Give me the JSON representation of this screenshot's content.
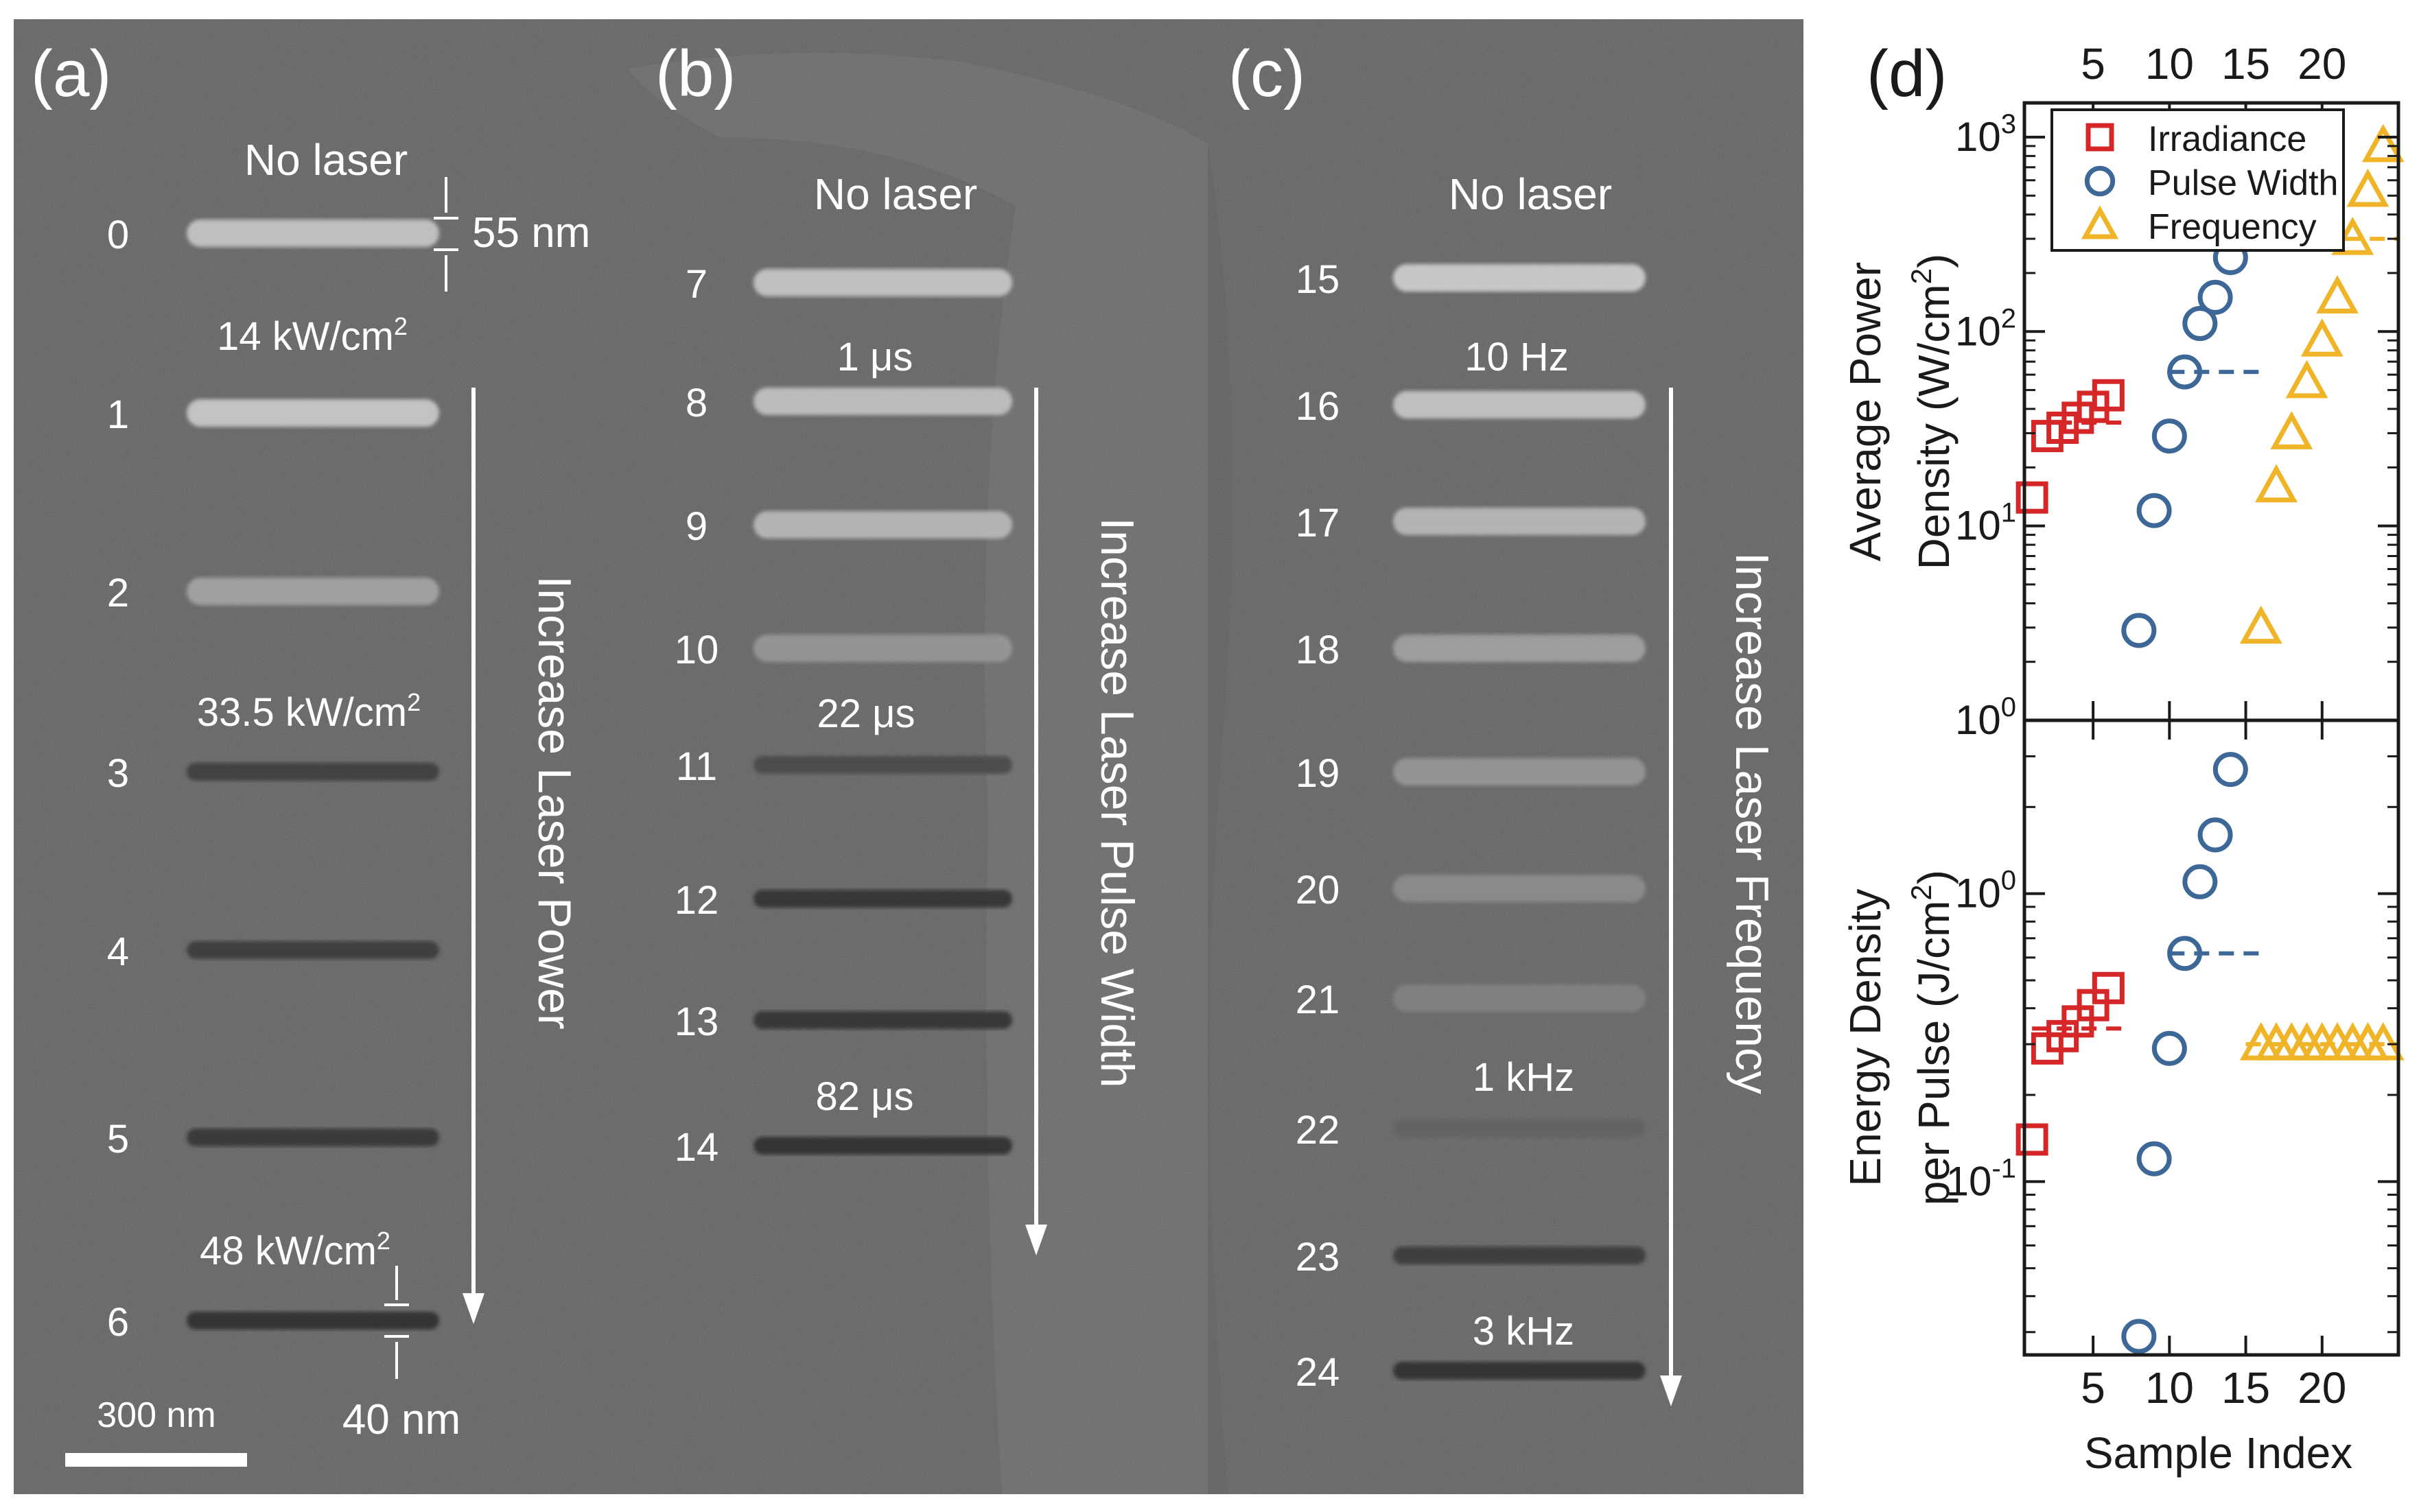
{
  "colors": {
    "sem_background": "#5c5c5c",
    "sem_text": "#ffffff",
    "irradiance": "#d62728",
    "pulse_width": "#3d6796",
    "frequency": "#f0b429",
    "axis": "#1a1a1a"
  },
  "sem_panels": [
    {
      "label": "(a)",
      "top_note": "No laser",
      "arrow_label": "Increase Laser Power",
      "scale_bar": "300 nm",
      "dimension_top": "55 nm",
      "dimension_bottom": "40 nm",
      "lines": [
        {
          "index": "0",
          "intensity": 0.78
        },
        {
          "index": "1",
          "intensity": 0.8
        },
        {
          "index": "2",
          "intensity": 0.62
        },
        {
          "index": "3",
          "intensity": 0.12
        },
        {
          "index": "4",
          "intensity": 0.1
        },
        {
          "index": "5",
          "intensity": 0.08
        },
        {
          "index": "6",
          "intensity": 0.05
        }
      ],
      "annotations": [
        {
          "text": "14 kW/cm",
          "sup": "2"
        },
        {
          "text": "33.5 kW/cm",
          "sup": "2"
        },
        {
          "text": "48 kW/cm",
          "sup": "2"
        }
      ]
    },
    {
      "label": "(b)",
      "top_note": "No laser",
      "arrow_label": "Increase Laser Pulse Width",
      "lines": [
        {
          "index": "7",
          "intensity": 0.78
        },
        {
          "index": "8",
          "intensity": 0.76
        },
        {
          "index": "9",
          "intensity": 0.72
        },
        {
          "index": "10",
          "intensity": 0.55
        },
        {
          "index": "11",
          "intensity": 0.18
        },
        {
          "index": "12",
          "intensity": 0.06
        },
        {
          "index": "13",
          "intensity": 0.06
        },
        {
          "index": "14",
          "intensity": 0.05
        }
      ],
      "annotations": [
        {
          "text": "1 μs",
          "sup": ""
        },
        {
          "text": "22 μs",
          "sup": ""
        },
        {
          "text": "82 μs",
          "sup": ""
        }
      ]
    },
    {
      "label": "(c)",
      "top_note": "No laser",
      "arrow_label": "Increase Laser Frequency",
      "lines": [
        {
          "index": "15",
          "intensity": 0.82
        },
        {
          "index": "16",
          "intensity": 0.78
        },
        {
          "index": "17",
          "intensity": 0.72
        },
        {
          "index": "18",
          "intensity": 0.6
        },
        {
          "index": "19",
          "intensity": 0.55
        },
        {
          "index": "20",
          "intensity": 0.5
        },
        {
          "index": "21",
          "intensity": 0.45
        },
        {
          "index": "22",
          "intensity": 0.3
        },
        {
          "index": "23",
          "intensity": 0.1
        },
        {
          "index": "24",
          "intensity": 0.05
        }
      ],
      "annotations": [
        {
          "text": "10 Hz",
          "sup": ""
        },
        {
          "text": "1 kHz",
          "sup": ""
        },
        {
          "text": "3 kHz",
          "sup": ""
        }
      ]
    }
  ],
  "chart_data": {
    "type": "scatter",
    "panel_label": "(d)",
    "x_ticks": [
      5,
      10,
      15,
      20
    ],
    "xlim": [
      0.5,
      25
    ],
    "xlabel": "Sample Index",
    "legend": {
      "placement": "top-left",
      "entries": [
        "Irradiance",
        "Pulse Width",
        "Frequency"
      ]
    },
    "top": {
      "ylabel": [
        "Average Power",
        "Density (W/cm",
        ")"
      ],
      "ylabel_sup": "2",
      "yscale": "log",
      "ylim": [
        1,
        1500
      ],
      "y_ticks": [
        {
          "value": 1,
          "base": "10",
          "exp": "0"
        },
        {
          "value": 10,
          "base": "10",
          "exp": "1"
        },
        {
          "value": 100,
          "base": "10",
          "exp": "2"
        },
        {
          "value": 1000,
          "base": "10",
          "exp": "3"
        }
      ],
      "series": [
        {
          "name": "Irradiance",
          "marker": "square",
          "x": [
            1,
            2,
            3,
            4,
            5,
            6
          ],
          "y": [
            14,
            29,
            32,
            36,
            41,
            47
          ]
        },
        {
          "name": "Pulse Width",
          "marker": "circle",
          "x": [
            8,
            9,
            10,
            11,
            12,
            13,
            14
          ],
          "y": [
            2.9,
            12,
            29,
            62,
            110,
            150,
            240
          ]
        },
        {
          "name": "Frequency",
          "marker": "triangle",
          "x": [
            16,
            17,
            18,
            19,
            20,
            21,
            22,
            23,
            24
          ],
          "y": [
            3,
            16,
            30,
            55,
            90,
            150,
            300,
            530,
            900
          ]
        }
      ],
      "reference_lines": [
        {
          "series": "Irradiance",
          "x": [
            1,
            7
          ],
          "y": 34
        },
        {
          "series": "Pulse Width",
          "x": [
            10,
            16
          ],
          "y": 62
        },
        {
          "series": "Frequency",
          "x": [
            21.5,
            25
          ],
          "y": 300
        }
      ]
    },
    "bottom": {
      "ylabel": [
        "Energy Density",
        "per Pulse (J/cm",
        ")"
      ],
      "ylabel_sup": "2",
      "yscale": "log",
      "ylim": [
        0.025,
        4
      ],
      "y_ticks": [
        {
          "value": 0.1,
          "base": "10",
          "exp": "-1"
        },
        {
          "value": 1,
          "base": "10",
          "exp": "0"
        }
      ],
      "series": [
        {
          "name": "Irradiance",
          "marker": "square",
          "x": [
            1,
            2,
            3,
            4,
            5,
            6
          ],
          "y": [
            0.14,
            0.29,
            0.32,
            0.36,
            0.41,
            0.47
          ]
        },
        {
          "name": "Pulse Width",
          "marker": "circle",
          "x": [
            8,
            9,
            10,
            11,
            12,
            13,
            14
          ],
          "y": [
            0.029,
            0.12,
            0.29,
            0.62,
            1.1,
            1.6,
            2.7
          ]
        },
        {
          "name": "Frequency",
          "marker": "triangle",
          "x": [
            16,
            17,
            18,
            19,
            20,
            21,
            22,
            23,
            24
          ],
          "y": [
            0.3,
            0.3,
            0.3,
            0.3,
            0.3,
            0.3,
            0.3,
            0.3,
            0.3
          ]
        }
      ],
      "reference_lines": [
        {
          "series": "Irradiance",
          "x": [
            1,
            7
          ],
          "y": 0.34
        },
        {
          "series": "Pulse Width",
          "x": [
            10,
            16
          ],
          "y": 0.62
        },
        {
          "series": "Frequency",
          "x": [
            15,
            25
          ],
          "y": 0.3
        }
      ]
    }
  }
}
